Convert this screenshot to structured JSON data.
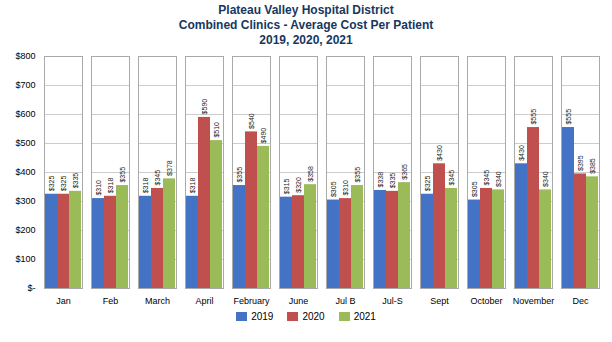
{
  "chart_data": {
    "type": "bar",
    "title": "Plateau Valley Hospital District\nCombined Clinics - Average Cost Per Patient\n2019, 2020, 2021",
    "categories": [
      "Jan",
      "Feb",
      "March",
      "April",
      "February",
      "June",
      "Jul B",
      "Jul-S",
      "Sept",
      "October",
      "November",
      "Dec"
    ],
    "series": [
      {
        "name": "2019",
        "color": "#4472C4",
        "values": [
          325,
          310,
          318,
          318,
          355,
          315,
          305,
          338,
          325,
          305,
          430,
          555
        ],
        "value_labels": [
          "$325",
          "$310",
          "$318",
          "$318",
          "$355",
          "$315",
          "$305",
          "$338",
          "$325",
          "$305",
          "$430",
          "$555"
        ]
      },
      {
        "name": "2020",
        "color": "#C0504D",
        "values": [
          325,
          318,
          345,
          590,
          540,
          320,
          310,
          335,
          430,
          345,
          555,
          395
        ],
        "value_labels": [
          "$325",
          "$318",
          "$345",
          "$590",
          "$540",
          "$320",
          "$310",
          "$335",
          "$430",
          "$345",
          "$555",
          "$395"
        ]
      },
      {
        "name": "2021",
        "color": "#9BBB59",
        "values": [
          335,
          355,
          378,
          510,
          490,
          358,
          355,
          365,
          345,
          340,
          340,
          385
        ],
        "value_labels": [
          "$335",
          "$355",
          "$378",
          "$510",
          "$490",
          "$358",
          "$355",
          "$365",
          "$345",
          "$340",
          "$340",
          "$385"
        ]
      }
    ],
    "ylim": [
      0,
      800
    ],
    "yticks": [
      {
        "value": 0,
        "label": "$-"
      },
      {
        "value": 100,
        "label": "$100"
      },
      {
        "value": 200,
        "label": "$200"
      },
      {
        "value": 300,
        "label": "$300"
      },
      {
        "value": 400,
        "label": "$400"
      },
      {
        "value": 500,
        "label": "$500"
      },
      {
        "value": 600,
        "label": "$600"
      },
      {
        "value": 700,
        "label": "$700"
      },
      {
        "value": 800,
        "label": "$800"
      }
    ],
    "grid": true,
    "data_labels": true,
    "legend": "bottom"
  }
}
